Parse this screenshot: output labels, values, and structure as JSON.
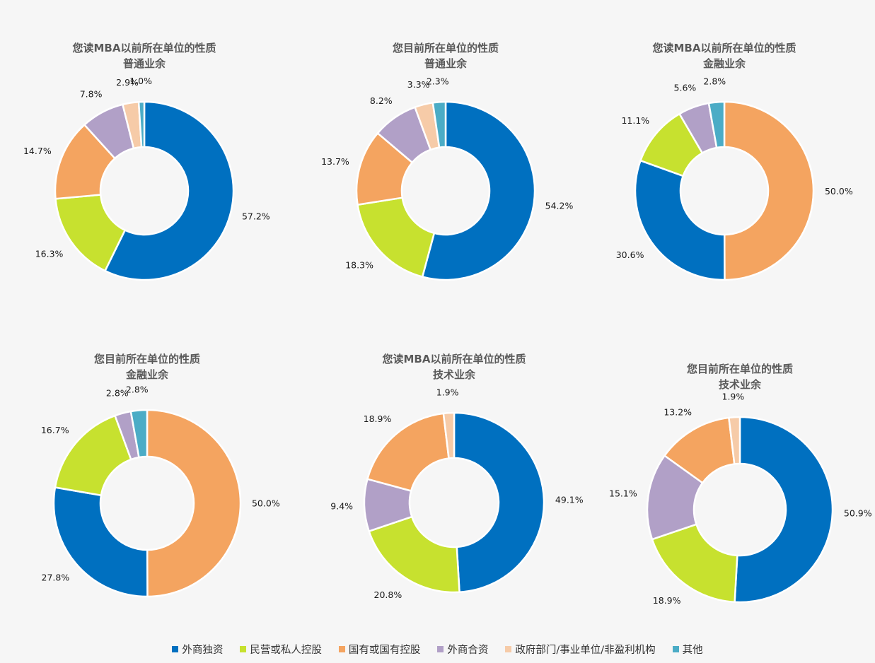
{
  "colors": {
    "外商独资": "#0070c0",
    "民营或私人控股": "#c7e12f",
    "国有或国有控股": "#f4a460",
    "外商合资": "#b1a0c7",
    "政府部门/事业单位/非盈利机构": "#f6cba8",
    "其他": "#4bacc6"
  },
  "legend": [
    {
      "label": "外商独资",
      "color": "#0070c0"
    },
    {
      "label": "民营或私人控股",
      "color": "#c7e12f"
    },
    {
      "label": "国有或国有控股",
      "color": "#f4a460"
    },
    {
      "label": "外商合资",
      "color": "#b1a0c7"
    },
    {
      "label": "政府部门/事业单位/非盈利机构",
      "color": "#f6cba8"
    },
    {
      "label": "其他",
      "color": "#4bacc6"
    }
  ],
  "chart_data": [
    {
      "type": "pie",
      "title": "您读MBA以前所在单位的性质",
      "subtitle": "普通业余",
      "slices": [
        {
          "category": "外商独资",
          "value": 57.2,
          "label": "57.2%"
        },
        {
          "category": "民营或私人控股",
          "value": 16.3,
          "label": "16.3%"
        },
        {
          "category": "国有或国有控股",
          "value": 14.7,
          "label": "14.7%"
        },
        {
          "category": "外商合资",
          "value": 7.8,
          "label": "7.8%"
        },
        {
          "category": "政府部门/事业单位/非盈利机构",
          "value": 2.9,
          "label": "2.9%"
        },
        {
          "category": "其他",
          "value": 1.0,
          "label": "1.0%"
        }
      ]
    },
    {
      "type": "pie",
      "title": "您目前所在单位的性质",
      "subtitle": "普通业余",
      "slices": [
        {
          "category": "外商独资",
          "value": 54.2,
          "label": "54.2%"
        },
        {
          "category": "民营或私人控股",
          "value": 18.3,
          "label": "18.3%"
        },
        {
          "category": "国有或国有控股",
          "value": 13.7,
          "label": "13.7%"
        },
        {
          "category": "外商合资",
          "value": 8.2,
          "label": "8.2%"
        },
        {
          "category": "政府部门/事业单位/非盈利机构",
          "value": 3.3,
          "label": "3.3%"
        },
        {
          "category": "其他",
          "value": 2.3,
          "label": "2.3%"
        }
      ]
    },
    {
      "type": "pie",
      "title": "您读MBA以前所在单位的性质",
      "subtitle": "金融业余",
      "slices": [
        {
          "category": "国有或国有控股",
          "value": 50.0,
          "label": "50.0%"
        },
        {
          "category": "外商独资",
          "value": 30.6,
          "label": "30.6%"
        },
        {
          "category": "民营或私人控股",
          "value": 11.1,
          "label": "11.1%"
        },
        {
          "category": "外商合资",
          "value": 5.6,
          "label": "5.6%"
        },
        {
          "category": "其他",
          "value": 2.8,
          "label": "2.8%"
        }
      ]
    },
    {
      "type": "pie",
      "title": "您目前所在单位的性质",
      "subtitle": "金融业余",
      "slices": [
        {
          "category": "国有或国有控股",
          "value": 50.0,
          "label": "50.0%"
        },
        {
          "category": "外商独资",
          "value": 27.8,
          "label": "27.8%"
        },
        {
          "category": "民营或私人控股",
          "value": 16.7,
          "label": "16.7%"
        },
        {
          "category": "外商合资",
          "value": 2.8,
          "label": "2.8%"
        },
        {
          "category": "其他",
          "value": 2.8,
          "label": "2.8%"
        }
      ]
    },
    {
      "type": "pie",
      "title": "您读MBA以前所在单位的性质",
      "subtitle": "技术业余",
      "slices": [
        {
          "category": "外商独资",
          "value": 49.1,
          "label": "49.1%"
        },
        {
          "category": "民营或私人控股",
          "value": 20.8,
          "label": "20.8%"
        },
        {
          "category": "外商合资",
          "value": 9.4,
          "label": "9.4%"
        },
        {
          "category": "国有或国有控股",
          "value": 18.9,
          "label": "18.9%"
        },
        {
          "category": "政府部门/事业单位/非盈利机构",
          "value": 1.9,
          "label": "1.9%"
        }
      ]
    },
    {
      "type": "pie",
      "title": "您目前所在单位的性质",
      "subtitle": "技术业余",
      "slices": [
        {
          "category": "外商独资",
          "value": 50.9,
          "label": "50.9%"
        },
        {
          "category": "民营或私人控股",
          "value": 18.9,
          "label": "18.9%"
        },
        {
          "category": "外商合资",
          "value": 15.1,
          "label": "15.1%"
        },
        {
          "category": "国有或国有控股",
          "value": 13.2,
          "label": "13.2%"
        },
        {
          "category": "政府部门/事业单位/非盈利机构",
          "value": 1.9,
          "label": "1.9%"
        }
      ]
    }
  ]
}
